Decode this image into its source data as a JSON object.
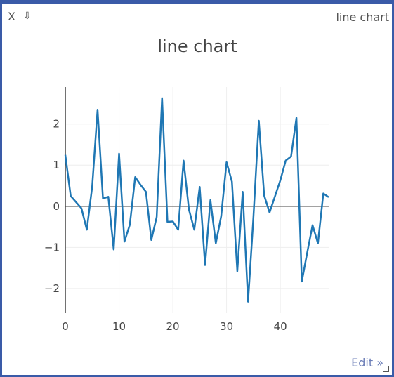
{
  "panel": {
    "close_label": "X",
    "collapse_label": "⇩",
    "corner_title": "line chart",
    "edit_label": "Edit »"
  },
  "chart_data": {
    "type": "line",
    "title": "line chart",
    "xlabel": "",
    "ylabel": "",
    "xlim": [
      0,
      49
    ],
    "ylim": [
      -2.6,
      2.9
    ],
    "x_ticks": [
      0,
      10,
      20,
      30,
      40
    ],
    "y_ticks": [
      2,
      1,
      0,
      -1,
      -2
    ],
    "y_tick_labels": [
      "2",
      "1",
      "0",
      "−1",
      "−2"
    ],
    "grid": true,
    "legend": "none",
    "series": [
      {
        "color": "#1f77b4",
        "x": [
          0,
          1,
          2,
          3,
          4,
          5,
          6,
          7,
          8,
          9,
          10,
          11,
          12,
          13,
          14,
          15,
          16,
          17,
          18,
          19,
          20,
          21,
          22,
          23,
          24,
          25,
          26,
          27,
          28,
          29,
          30,
          31,
          32,
          33,
          34,
          35,
          36,
          37,
          38,
          39,
          40,
          41,
          42,
          43,
          44,
          45,
          46,
          47,
          48,
          49
        ],
        "values": [
          1.25,
          0.25,
          0.1,
          -0.05,
          -0.57,
          0.48,
          2.35,
          0.19,
          0.23,
          -1.05,
          1.28,
          -0.86,
          -0.45,
          0.71,
          0.52,
          0.35,
          -0.82,
          -0.26,
          2.63,
          -0.38,
          -0.37,
          -0.57,
          1.11,
          -0.08,
          -0.57,
          0.47,
          -1.43,
          0.15,
          -0.9,
          -0.24,
          1.07,
          0.6,
          -1.58,
          0.35,
          -2.32,
          -0.26,
          2.08,
          0.26,
          -0.15,
          0.24,
          0.63,
          1.11,
          1.21,
          2.15,
          -1.83,
          -1.13,
          -0.46,
          -0.9,
          0.31,
          0.22
        ]
      }
    ]
  }
}
